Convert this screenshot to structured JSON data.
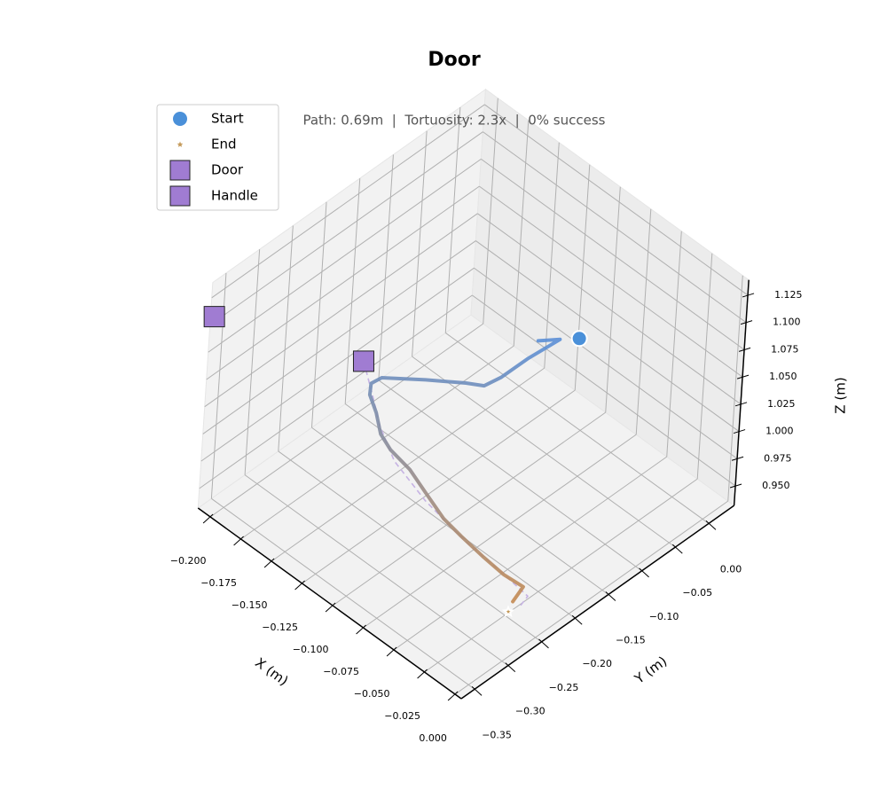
{
  "chart_data": {
    "type": "line3d",
    "title": "Door",
    "subtitle": "Path: 0.69m  |  Tortuosity: 2.3x  |  0% success",
    "xlabel": "X (m)",
    "ylabel": "Y (m)",
    "zlabel": "Z (m)",
    "xlim": [
      -0.21,
      0.005
    ],
    "ylim": [
      -0.37,
      0.038
    ],
    "zlim": [
      0.932,
      1.139
    ],
    "xticks": [
      {
        "value": -0.2,
        "label": "−0.200"
      },
      {
        "value": -0.175,
        "label": "−0.175"
      },
      {
        "value": -0.15,
        "label": "−0.150"
      },
      {
        "value": -0.125,
        "label": "−0.125"
      },
      {
        "value": -0.1,
        "label": "−0.100"
      },
      {
        "value": -0.075,
        "label": "−0.075"
      },
      {
        "value": -0.05,
        "label": "−0.050"
      },
      {
        "value": -0.025,
        "label": "−0.025"
      },
      {
        "value": 0,
        "label": "0.000"
      }
    ],
    "yticks": [
      {
        "value": -0.35,
        "label": "−0.35"
      },
      {
        "value": -0.3,
        "label": "−0.30"
      },
      {
        "value": -0.25,
        "label": "−0.25"
      },
      {
        "value": -0.2,
        "label": "−0.20"
      },
      {
        "value": -0.15,
        "label": "−0.15"
      },
      {
        "value": -0.1,
        "label": "−0.10"
      },
      {
        "value": -0.05,
        "label": "−0.05"
      },
      {
        "value": 0,
        "label": "0.00"
      }
    ],
    "zticks": [
      {
        "value": 0.95,
        "label": "0.950"
      },
      {
        "value": 0.975,
        "label": "0.975"
      },
      {
        "value": 1.0,
        "label": "1.000"
      },
      {
        "value": 1.025,
        "label": "1.025"
      },
      {
        "value": 1.05,
        "label": "1.050"
      },
      {
        "value": 1.075,
        "label": "1.075"
      },
      {
        "value": 1.1,
        "label": "1.100"
      },
      {
        "value": 1.125,
        "label": "1.125"
      }
    ],
    "grid": true,
    "legend": "upper left",
    "trajectory": {
      "colors": [
        "#5b8fd6",
        "#c48a52"
      ],
      "x": [
        -0.085,
        -0.077,
        -0.085,
        -0.091,
        -0.096,
        -0.105,
        -0.123,
        -0.142,
        -0.146,
        -0.146,
        -0.139,
        -0.131,
        -0.121,
        -0.105,
        -0.092,
        -0.075,
        -0.061,
        -0.043,
        -0.028,
        -0.016,
        -0.013
      ],
      "y": [
        -0.105,
        -0.087,
        -0.12,
        -0.147,
        -0.163,
        -0.174,
        -0.201,
        -0.232,
        -0.24,
        -0.241,
        -0.243,
        -0.25,
        -0.253,
        -0.253,
        -0.253,
        -0.255,
        -0.254,
        -0.253,
        -0.25,
        -0.242,
        -0.263
      ],
      "z": [
        1.072,
        1.072,
        1.062,
        1.052,
        1.047,
        1.047,
        1.047,
        1.047,
        1.042,
        1.032,
        1.022,
        1.012,
        1.007,
        1.002,
        0.992,
        0.982,
        0.977,
        0.972,
        0.967,
        0.962,
        0.96
      ]
    },
    "reference": {
      "color": "#c6b3e3",
      "x": [
        -0.151,
        -0.145,
        -0.133,
        -0.116,
        -0.09,
        -0.057,
        -0.031,
        -0.01,
        -0.007
      ],
      "y": [
        -0.244,
        -0.239,
        -0.248,
        -0.256,
        -0.256,
        -0.256,
        -0.249,
        -0.246,
        -0.265
      ],
      "z": [
        1.06,
        1.032,
        1.017,
        1.002,
        0.987,
        0.977,
        0.967,
        0.96,
        0.96
      ]
    },
    "markers": [
      {
        "name": "Start",
        "shape": "circle",
        "color": "#4a90d9",
        "x": -0.065,
        "y": -0.081,
        "z": 1.08
      },
      {
        "name": "End",
        "shape": "star",
        "color": "#c49a5a",
        "x": -0.009,
        "y": -0.277,
        "z": 0.96
      },
      {
        "name": "Door",
        "shape": "square",
        "color": "#a07cd2",
        "x": -0.213,
        "y": -0.358,
        "z": 1.1
      },
      {
        "name": "Handle",
        "shape": "square",
        "color": "#a07cd2",
        "x": -0.151,
        "y": -0.244,
        "z": 1.06
      }
    ]
  }
}
